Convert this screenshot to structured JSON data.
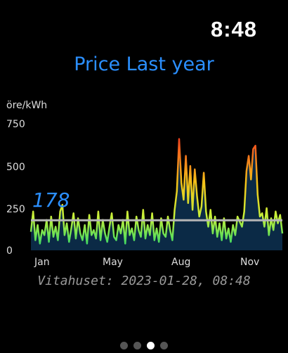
{
  "status": {
    "time": "8:48"
  },
  "header": {
    "title": "Price Last year"
  },
  "footer": {
    "text": "Vitahuset: 2023-01-28, 08:48"
  },
  "pager": {
    "count": 4,
    "active_index": 2
  },
  "chart_data": {
    "type": "area",
    "title": "Price Last year",
    "ylabel": "öre/kWh",
    "ylim": [
      0,
      750
    ],
    "yticks": [
      "750",
      "500",
      "250",
      "0"
    ],
    "ytick_values": [
      750,
      500,
      250,
      0
    ],
    "xticks": [
      "Jan",
      "May",
      "Aug",
      "Nov"
    ],
    "xtick_index": [
      5,
      35,
      65,
      95
    ],
    "average": {
      "label": "178",
      "value": 178
    },
    "series": [
      {
        "values": [
          110,
          230,
          60,
          150,
          40,
          120,
          90,
          180,
          50,
          200,
          80,
          140,
          60,
          230,
          270,
          90,
          160,
          50,
          130,
          220,
          70,
          190,
          100,
          60,
          150,
          40,
          210,
          90,
          120,
          70,
          230,
          60,
          180,
          100,
          50,
          140,
          220,
          80,
          60,
          150,
          100,
          180,
          40,
          230,
          90,
          130,
          60,
          200,
          120,
          80,
          240,
          70,
          150,
          90,
          220,
          60,
          130,
          50,
          190,
          100,
          80,
          200,
          120,
          60,
          240,
          350,
          660,
          400,
          300,
          560,
          280,
          500,
          240,
          480,
          320,
          200,
          260,
          460,
          230,
          140,
          240,
          100,
          200,
          80,
          160,
          60,
          190,
          70,
          130,
          50,
          150,
          90,
          200,
          170,
          140,
          230,
          470,
          560,
          420,
          600,
          620,
          330,
          200,
          220,
          140,
          250,
          90,
          190,
          120,
          230,
          160,
          210,
          100
        ]
      }
    ]
  }
}
